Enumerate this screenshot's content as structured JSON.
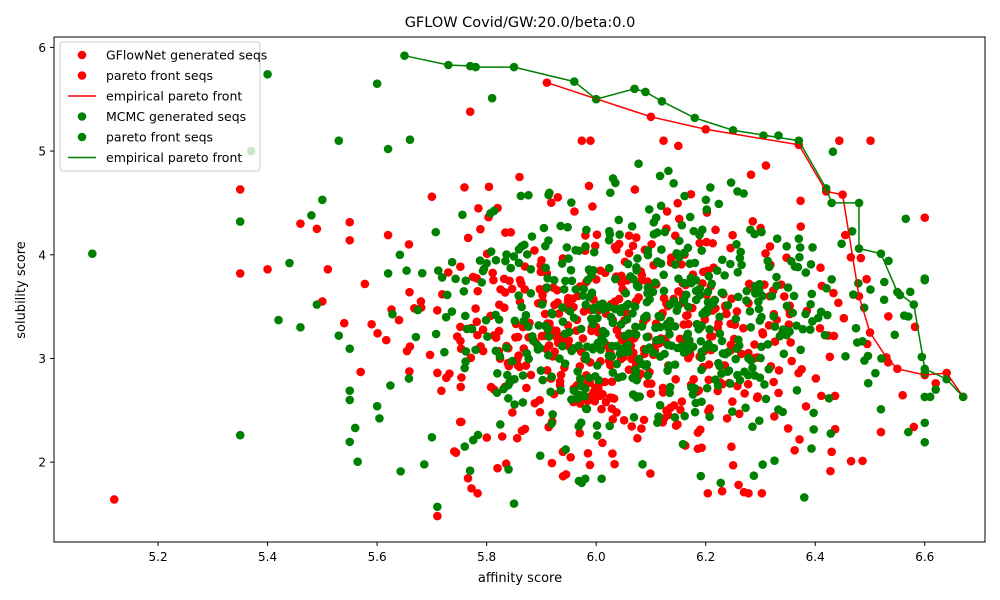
{
  "chart_data": {
    "type": "scatter",
    "title": "GFLOW Covid/GW:20.0/beta:0.0",
    "xlabel": "affinity score",
    "ylabel": "solubility score",
    "xlim": [
      5.01,
      6.71
    ],
    "ylim": [
      1.23,
      6.1
    ],
    "xticks": [
      5.2,
      5.4,
      5.6,
      5.8,
      6.0,
      6.2,
      6.4,
      6.6
    ],
    "xtick_labels": [
      "5.2",
      "5.4",
      "5.6",
      "5.8",
      "6.0",
      "6.2",
      "6.4",
      "6.6"
    ],
    "yticks": [
      2,
      3,
      4,
      5,
      6
    ],
    "ytick_labels": [
      "2",
      "3",
      "4",
      "5",
      "6"
    ],
    "grid": false,
    "legend_position": "upper-left",
    "legend": [
      {
        "label": "GFlowNet generated seqs",
        "kind": "marker",
        "color": "#ff0000"
      },
      {
        "label": "pareto front seqs",
        "kind": "marker",
        "color": "#ff0000"
      },
      {
        "label": "empirical pareto front",
        "kind": "line",
        "color": "#ff0000"
      },
      {
        "label": "MCMC generated seqs",
        "kind": "marker",
        "color": "#008000"
      },
      {
        "label": "pareto front seqs",
        "kind": "marker",
        "color": "#008000"
      },
      {
        "label": "empirical pareto front",
        "kind": "line",
        "color": "#008000"
      }
    ],
    "series": [
      {
        "kind": "scatter",
        "color": "#ff0000",
        "outliers": [
          [
            5.12,
            1.64
          ],
          [
            5.35,
            3.82
          ],
          [
            5.35,
            4.63
          ],
          [
            5.4,
            3.86
          ],
          [
            5.46,
            4.3
          ],
          [
            5.49,
            4.25
          ],
          [
            5.51,
            3.86
          ],
          [
            5.5,
            3.55
          ],
          [
            5.54,
            3.34
          ],
          [
            5.57,
            2.87
          ],
          [
            5.59,
            3.33
          ],
          [
            5.62,
            4.19
          ],
          [
            5.64,
            3.37
          ],
          [
            5.68,
            3.55
          ],
          [
            5.71,
            2.86
          ],
          [
            5.71,
            1.48
          ],
          [
            5.7,
            4.56
          ],
          [
            5.73,
            3.83
          ],
          [
            5.77,
            5.38
          ],
          [
            5.82,
            4.45
          ],
          [
            5.86,
            4.75
          ],
          [
            5.87,
            2.32
          ],
          [
            5.91,
            5.66
          ],
          [
            5.97,
            2.28
          ],
          [
            6.1,
            5.33
          ],
          [
            6.15,
            5.05
          ],
          [
            6.2,
            5.21
          ],
          [
            6.23,
            1.72
          ],
          [
            6.25,
            1.97
          ],
          [
            6.26,
            1.78
          ],
          [
            6.27,
            1.71
          ],
          [
            6.31,
            4.86
          ],
          [
            6.37,
            5.06
          ],
          [
            6.42,
            4.61
          ],
          [
            6.45,
            4.58
          ],
          [
            6.48,
            3.6
          ],
          [
            6.5,
            3.25
          ],
          [
            6.53,
            3.01
          ],
          [
            6.55,
            2.9
          ],
          [
            6.58,
            2.34
          ],
          [
            6.6,
            2.84
          ],
          [
            6.62,
            2.76
          ],
          [
            6.64,
            2.86
          ],
          [
            6.67,
            2.63
          ],
          [
            6.43,
            2.1
          ],
          [
            6.52,
            2.29
          ]
        ],
        "cluster": {
          "count": 520,
          "seed": 11,
          "x_center": 6.05,
          "x_sd": 0.19,
          "y_center": 3.25,
          "y_sd": 0.62,
          "x_range": [
            5.55,
            6.6
          ],
          "y_range": [
            1.7,
            5.1
          ]
        }
      },
      {
        "kind": "scatter",
        "color": "#008000",
        "outliers": [
          [
            5.08,
            4.01
          ],
          [
            5.35,
            2.26
          ],
          [
            5.35,
            4.32
          ],
          [
            5.37,
            5.0
          ],
          [
            5.4,
            5.74
          ],
          [
            5.42,
            3.37
          ],
          [
            5.44,
            3.92
          ],
          [
            5.46,
            3.3
          ],
          [
            5.48,
            4.38
          ],
          [
            5.49,
            3.52
          ],
          [
            5.5,
            4.53
          ],
          [
            5.53,
            5.1
          ],
          [
            5.53,
            3.22
          ],
          [
            5.55,
            2.6
          ],
          [
            5.56,
            2.33
          ],
          [
            5.6,
            5.65
          ],
          [
            5.6,
            2.54
          ],
          [
            5.62,
            5.02
          ],
          [
            5.65,
            5.92
          ],
          [
            5.66,
            5.11
          ],
          [
            5.7,
            2.24
          ],
          [
            5.71,
            1.57
          ],
          [
            5.73,
            5.83
          ],
          [
            5.77,
            5.82
          ],
          [
            5.78,
            5.81
          ],
          [
            5.76,
            2.15
          ],
          [
            5.81,
            5.51
          ],
          [
            5.84,
            1.93
          ],
          [
            5.85,
            5.81
          ],
          [
            5.85,
            1.6
          ],
          [
            5.96,
            5.67
          ],
          [
            5.98,
            1.84
          ],
          [
            6.0,
            5.5
          ],
          [
            6.01,
            1.84
          ],
          [
            6.07,
            5.6
          ],
          [
            6.09,
            5.57
          ],
          [
            6.12,
            5.48
          ],
          [
            6.18,
            5.32
          ],
          [
            6.25,
            5.2
          ],
          [
            6.37,
            5.1
          ],
          [
            6.38,
            1.66
          ],
          [
            6.42,
            4.64
          ],
          [
            6.43,
            4.5
          ],
          [
            6.48,
            4.5
          ],
          [
            6.48,
            4.06
          ],
          [
            6.52,
            4.01
          ],
          [
            6.55,
            3.64
          ],
          [
            6.58,
            3.52
          ],
          [
            6.6,
            2.9
          ],
          [
            6.61,
            2.63
          ],
          [
            6.62,
            2.7
          ],
          [
            6.64,
            2.8
          ],
          [
            6.67,
            2.63
          ],
          [
            6.57,
            2.29
          ],
          [
            6.52,
            2.51
          ]
        ],
        "cluster": {
          "count": 560,
          "seed": 23,
          "x_center": 6.08,
          "x_sd": 0.2,
          "y_center": 3.35,
          "y_sd": 0.6,
          "x_range": [
            5.55,
            6.6
          ],
          "y_range": [
            1.8,
            5.15
          ]
        }
      }
    ],
    "pareto_fronts": [
      {
        "color": "#ff0000",
        "points": [
          [
            5.91,
            5.66
          ],
          [
            6.1,
            5.33
          ],
          [
            6.2,
            5.21
          ],
          [
            6.37,
            5.06
          ],
          [
            6.42,
            4.61
          ],
          [
            6.45,
            4.58
          ],
          [
            6.48,
            3.6
          ],
          [
            6.5,
            3.25
          ],
          [
            6.53,
            3.01
          ],
          [
            6.55,
            2.9
          ],
          [
            6.6,
            2.84
          ],
          [
            6.64,
            2.86
          ],
          [
            6.67,
            2.63
          ]
        ]
      },
      {
        "color": "#008000",
        "points": [
          [
            5.65,
            5.92
          ],
          [
            5.73,
            5.83
          ],
          [
            5.77,
            5.82
          ],
          [
            5.78,
            5.81
          ],
          [
            5.85,
            5.81
          ],
          [
            5.96,
            5.67
          ],
          [
            6.0,
            5.5
          ],
          [
            6.07,
            5.6
          ],
          [
            6.09,
            5.57
          ],
          [
            6.12,
            5.48
          ],
          [
            6.18,
            5.32
          ],
          [
            6.25,
            5.2
          ],
          [
            6.37,
            5.1
          ],
          [
            6.42,
            4.64
          ],
          [
            6.43,
            4.5
          ],
          [
            6.48,
            4.5
          ],
          [
            6.48,
            4.06
          ],
          [
            6.52,
            4.01
          ],
          [
            6.55,
            3.64
          ],
          [
            6.58,
            3.52
          ],
          [
            6.6,
            2.9
          ],
          [
            6.64,
            2.8
          ],
          [
            6.67,
            2.63
          ]
        ]
      }
    ]
  }
}
